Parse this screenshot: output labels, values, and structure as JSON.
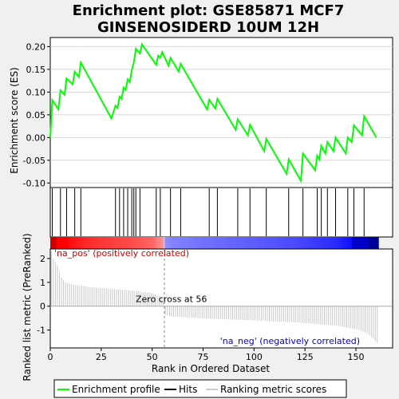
{
  "chart_data": {
    "type": "line",
    "title_line1": "Enrichment plot: GSE85871 MCF7",
    "title_line2": "GINSENOSIDERD 10UM 12H",
    "es_panel": {
      "ylabel": "Enrichment score (ES)",
      "ylim": [
        -0.11,
        0.22
      ],
      "yticks": [
        -0.1,
        -0.05,
        0.0,
        0.05,
        0.1,
        0.15,
        0.2
      ],
      "ytick_labels": [
        "-0.10",
        "-0.05",
        "0.00",
        "0.05",
        "0.10",
        "0.15",
        "0.20"
      ],
      "series_name": "Enrichment profile",
      "line_color": "#00ff00",
      "points": [
        [
          0,
          0
        ],
        [
          1,
          0.082
        ],
        [
          4,
          0.062
        ],
        [
          5,
          0.104
        ],
        [
          7,
          0.094
        ],
        [
          8,
          0.13
        ],
        [
          11,
          0.117
        ],
        [
          12,
          0.145
        ],
        [
          14,
          0.133
        ],
        [
          15,
          0.165
        ],
        [
          30,
          0.042
        ],
        [
          32,
          0.07
        ],
        [
          33,
          0.065
        ],
        [
          34,
          0.09
        ],
        [
          35,
          0.085
        ],
        [
          36,
          0.11
        ],
        [
          37,
          0.105
        ],
        [
          38,
          0.128
        ],
        [
          39,
          0.122
        ],
        [
          40,
          0.148
        ],
        [
          41,
          0.165
        ],
        [
          42,
          0.195
        ],
        [
          44,
          0.185
        ],
        [
          45,
          0.205
        ],
        [
          52,
          0.16
        ],
        [
          53,
          0.18
        ],
        [
          54,
          0.176
        ],
        [
          55,
          0.188
        ],
        [
          58,
          0.158
        ],
        [
          59,
          0.175
        ],
        [
          63,
          0.145
        ],
        [
          64,
          0.162
        ],
        [
          77,
          0.062
        ],
        [
          78,
          0.083
        ],
        [
          81,
          0.064
        ],
        [
          82,
          0.085
        ],
        [
          91,
          0.017
        ],
        [
          92,
          0.04
        ],
        [
          97,
          0.005
        ],
        [
          98,
          0.028
        ],
        [
          105,
          -0.03
        ],
        [
          106,
          -0.003
        ],
        [
          116,
          -0.08
        ],
        [
          117,
          -0.048
        ],
        [
          123,
          -0.095
        ],
        [
          124,
          -0.035
        ],
        [
          130,
          -0.072
        ],
        [
          131,
          -0.04
        ],
        [
          132,
          -0.048
        ],
        [
          133,
          -0.018
        ],
        [
          135,
          -0.035
        ],
        [
          136,
          -0.01
        ],
        [
          139,
          -0.03
        ],
        [
          140,
          0.0
        ],
        [
          145,
          -0.035
        ],
        [
          146,
          0.0
        ],
        [
          148,
          -0.01
        ],
        [
          149,
          0.027
        ],
        [
          153,
          0.005
        ],
        [
          154,
          0.047
        ],
        [
          160,
          0.0
        ]
      ]
    },
    "hits": {
      "series_name": "Hits",
      "positions": [
        1,
        5,
        8,
        12,
        15,
        32,
        34,
        36,
        38,
        40,
        41,
        42,
        44,
        52,
        54,
        59,
        64,
        78,
        82,
        92,
        98,
        106,
        117,
        124,
        131,
        133,
        136,
        140,
        146,
        149,
        154
      ]
    },
    "rank_panel": {
      "ylabel": "Ranked list metric (PreRanked)",
      "xlabel": "Rank in Ordered Dataset",
      "ylim": [
        -1.75,
        2.4
      ],
      "yticks": [
        -1,
        0,
        1,
        2
      ],
      "ytick_labels": [
        "-1",
        "0",
        "1",
        "2"
      ],
      "xlim": [
        0,
        168
      ],
      "xticks": [
        0,
        25,
        50,
        75,
        100,
        125,
        150
      ],
      "xtick_labels": [
        "0",
        "25",
        "50",
        "75",
        "100",
        "125",
        "150"
      ],
      "series_name": "Ranking metric scores",
      "n_genes": 161,
      "zero_cross": 56,
      "zero_cross_label": "Zero cross at 56",
      "pos_label": "'na_pos' (positively correlated)",
      "neg_label": "'na_neg' (negatively correlated)",
      "pos_color": "#cc0000",
      "neg_color": "#0000cc",
      "curve_anchors": [
        [
          0,
          2.3
        ],
        [
          1,
          2.0
        ],
        [
          3,
          1.7
        ],
        [
          5,
          1.2
        ],
        [
          7,
          1.0
        ],
        [
          10,
          0.92
        ],
        [
          15,
          0.85
        ],
        [
          20,
          0.79
        ],
        [
          30,
          0.72
        ],
        [
          40,
          0.66
        ],
        [
          50,
          0.55
        ],
        [
          55,
          0.32
        ],
        [
          56,
          -0.38
        ],
        [
          60,
          -0.44
        ],
        [
          80,
          -0.53
        ],
        [
          100,
          -0.6
        ],
        [
          120,
          -0.68
        ],
        [
          140,
          -0.82
        ],
        [
          150,
          -0.98
        ],
        [
          155,
          -1.12
        ],
        [
          158,
          -1.35
        ],
        [
          160,
          -1.55
        ]
      ]
    },
    "legend": {
      "entries": [
        "Enrichment profile",
        "Hits",
        "Ranking metric scores"
      ],
      "colors": [
        "#00ff00",
        "#000000",
        "#cccccc"
      ],
      "placement": "bottom"
    }
  }
}
